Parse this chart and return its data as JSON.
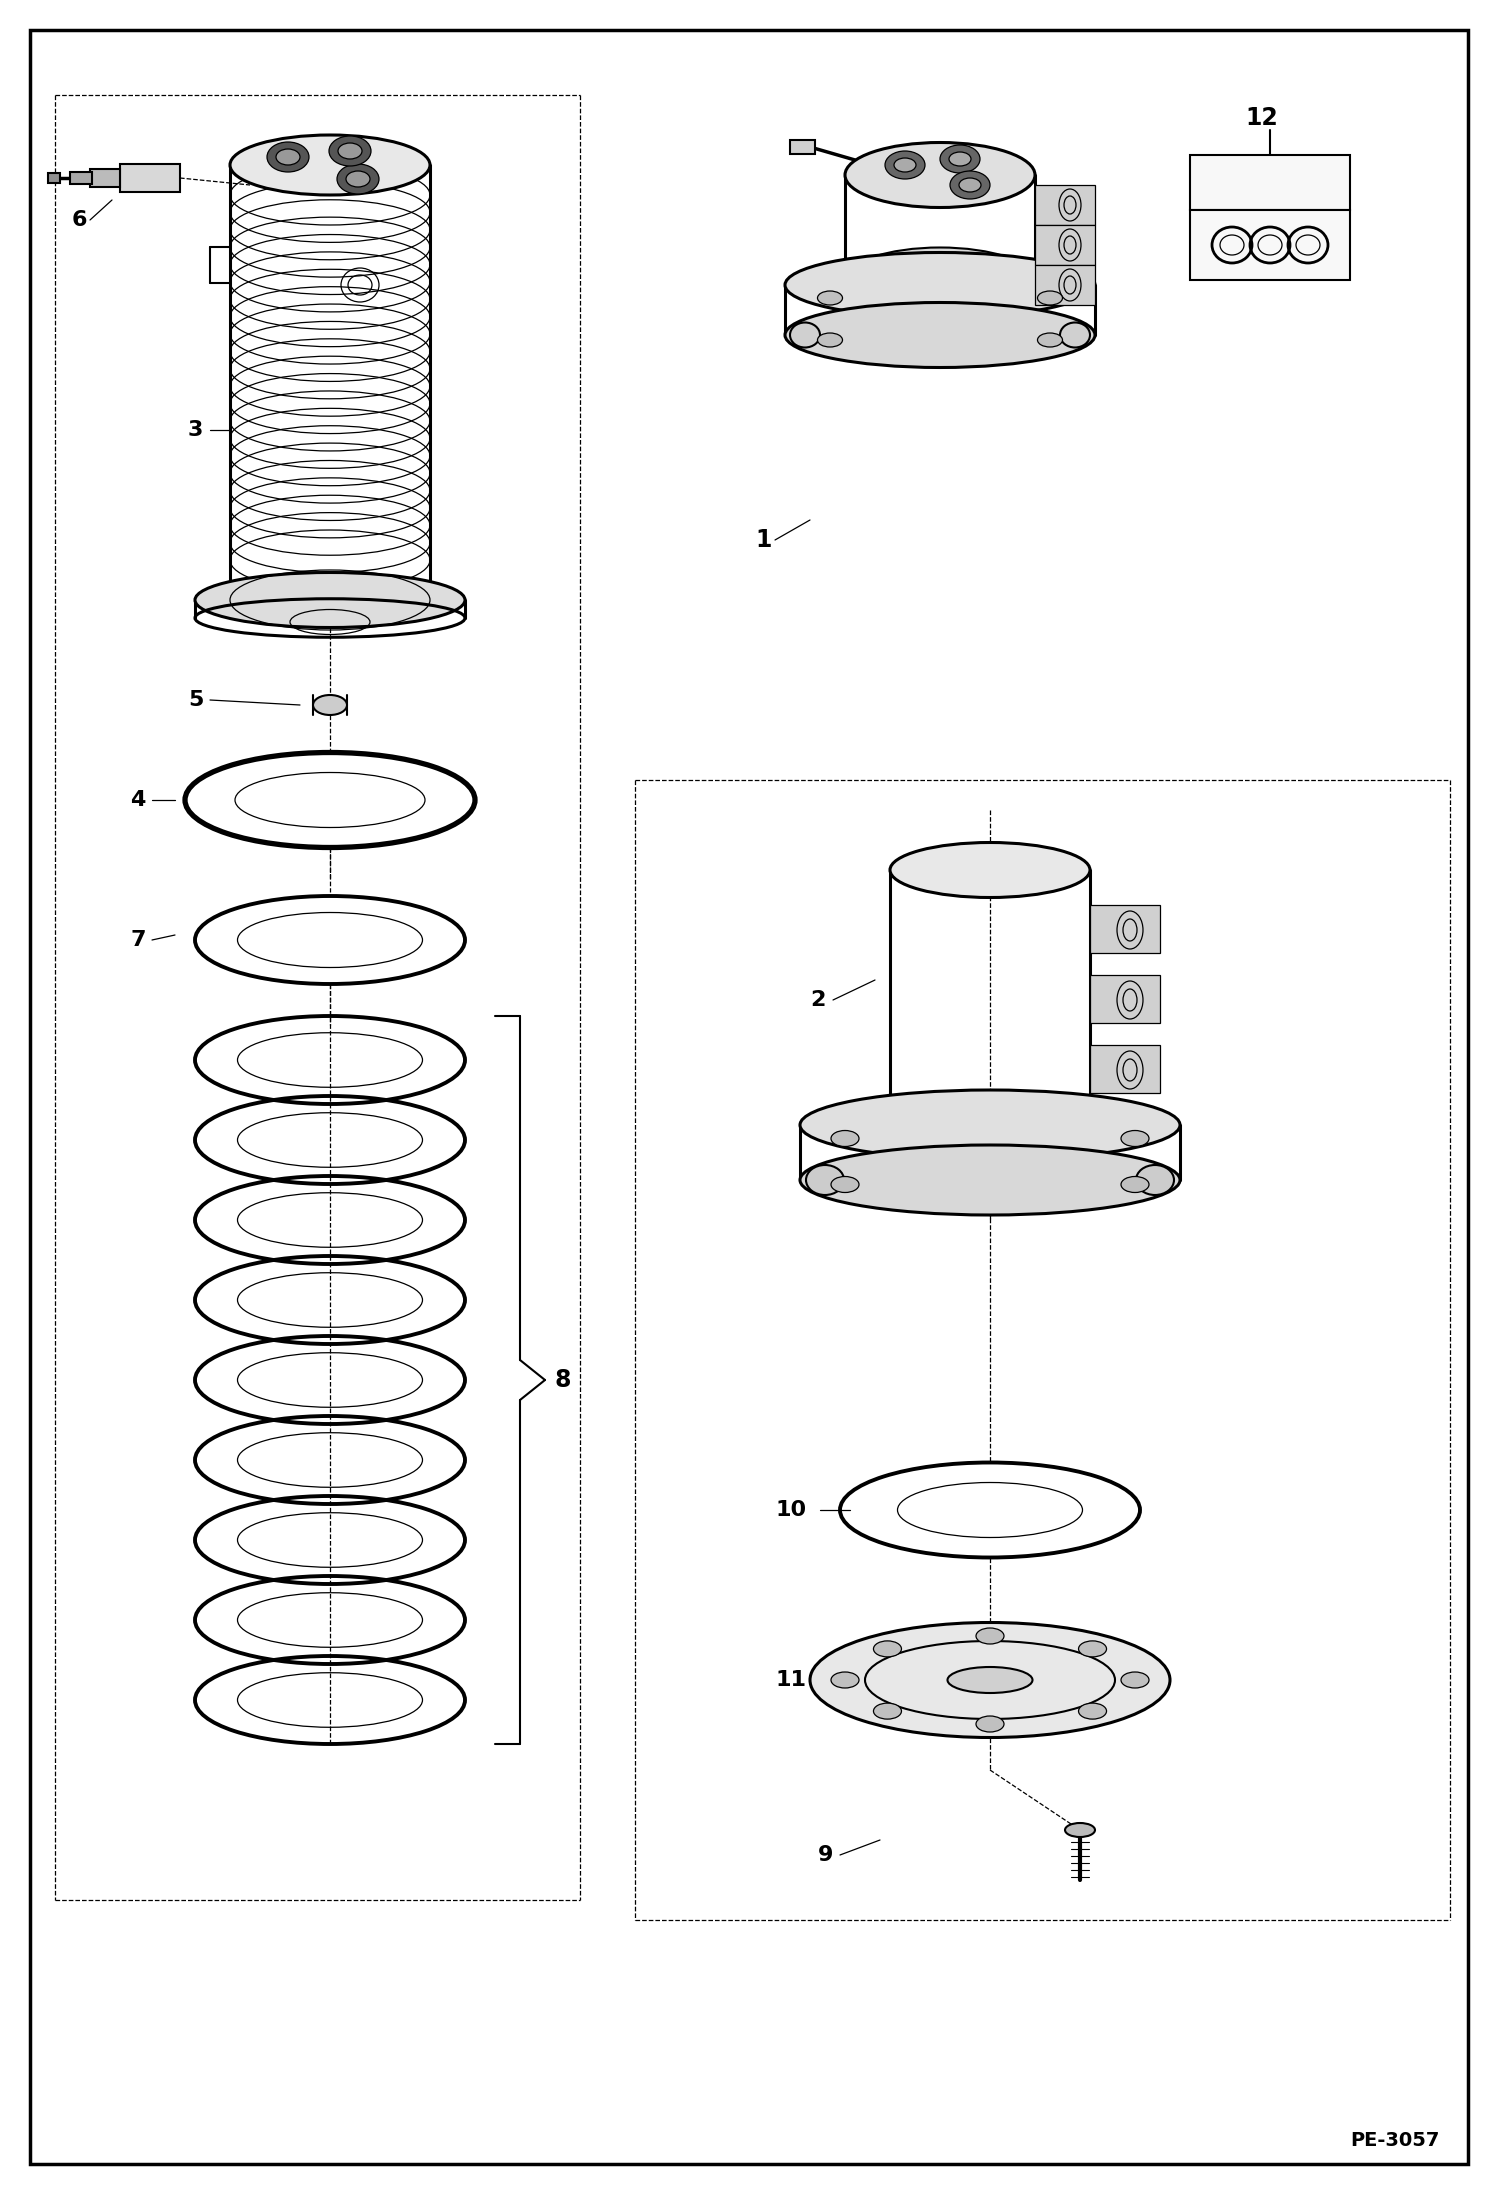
{
  "bg_color": "#ffffff",
  "line_color": "#000000",
  "fig_width": 14.98,
  "fig_height": 21.94,
  "dpi": 100,
  "page_code": "PE-3057",
  "lw_main": 1.5,
  "lw_thick": 2.2,
  "lw_thin": 0.9,
  "lw_ring": 2.8
}
